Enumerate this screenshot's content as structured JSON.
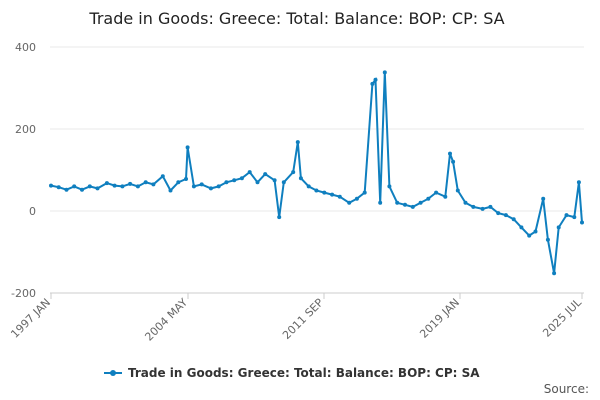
{
  "chart_data": {
    "type": "line",
    "title": "Trade in Goods: Greece: Total: Balance: BOP: CP: SA",
    "xlabel": "",
    "ylabel": "",
    "ylim": [
      -200,
      400
    ],
    "y_ticks": [
      "400",
      "200",
      "0",
      "-200"
    ],
    "x_ticks": [
      "1997 JAN",
      "2004 MAY",
      "2011 SEP",
      "2019 JAN",
      "2025 JUL"
    ],
    "grid": true,
    "legend_position": "bottom",
    "source_label": "Source:",
    "series": [
      {
        "name": "Trade in Goods: Greece: Total: Balance: BOP: CP: SA",
        "color": "#0f7fbf",
        "points": [
          [
            "1997-01",
            62
          ],
          [
            "1997-06",
            58
          ],
          [
            "1997-11",
            52
          ],
          [
            "1998-04",
            60
          ],
          [
            "1998-09",
            52
          ],
          [
            "1999-02",
            60
          ],
          [
            "1999-07",
            55
          ],
          [
            "2000-01",
            68
          ],
          [
            "2000-06",
            62
          ],
          [
            "2000-11",
            60
          ],
          [
            "2001-04",
            66
          ],
          [
            "2001-09",
            60
          ],
          [
            "2002-02",
            70
          ],
          [
            "2002-07",
            65
          ],
          [
            "2003-01",
            85
          ],
          [
            "2003-06",
            50
          ],
          [
            "2003-11",
            70
          ],
          [
            "2004-04",
            78
          ],
          [
            "2004-05",
            155
          ],
          [
            "2004-09",
            60
          ],
          [
            "2005-02",
            65
          ],
          [
            "2005-08",
            55
          ],
          [
            "2006-01",
            60
          ],
          [
            "2006-06",
            70
          ],
          [
            "2006-11",
            75
          ],
          [
            "2007-04",
            80
          ],
          [
            "2007-09",
            95
          ],
          [
            "2008-02",
            70
          ],
          [
            "2008-07",
            90
          ],
          [
            "2009-01",
            75
          ],
          [
            "2009-04",
            -15
          ],
          [
            "2009-07",
            70
          ],
          [
            "2010-01",
            95
          ],
          [
            "2010-04",
            168
          ],
          [
            "2010-06",
            80
          ],
          [
            "2010-11",
            60
          ],
          [
            "2011-04",
            50
          ],
          [
            "2011-09",
            45
          ],
          [
            "2012-02",
            40
          ],
          [
            "2012-07",
            35
          ],
          [
            "2013-01",
            20
          ],
          [
            "2013-06",
            30
          ],
          [
            "2013-11",
            45
          ],
          [
            "2014-04",
            310
          ],
          [
            "2014-06",
            320
          ],
          [
            "2014-09",
            20
          ],
          [
            "2014-12",
            338
          ],
          [
            "2015-03",
            60
          ],
          [
            "2015-08",
            20
          ],
          [
            "2016-01",
            15
          ],
          [
            "2016-06",
            10
          ],
          [
            "2016-11",
            20
          ],
          [
            "2017-04",
            30
          ],
          [
            "2017-09",
            45
          ],
          [
            "2018-03",
            35
          ],
          [
            "2018-06",
            140
          ],
          [
            "2018-08",
            120
          ],
          [
            "2018-11",
            50
          ],
          [
            "2019-04",
            20
          ],
          [
            "2019-09",
            10
          ],
          [
            "2020-03",
            5
          ],
          [
            "2020-08",
            10
          ],
          [
            "2021-01",
            -5
          ],
          [
            "2021-06",
            -10
          ],
          [
            "2021-11",
            -20
          ],
          [
            "2022-04",
            -40
          ],
          [
            "2022-09",
            -60
          ],
          [
            "2023-01",
            -50
          ],
          [
            "2023-06",
            30
          ],
          [
            "2023-09",
            -70
          ],
          [
            "2024-01",
            -152
          ],
          [
            "2024-04",
            -40
          ],
          [
            "2024-09",
            -10
          ],
          [
            "2025-02",
            -15
          ],
          [
            "2025-05",
            70
          ],
          [
            "2025-07",
            -28
          ]
        ]
      }
    ]
  }
}
